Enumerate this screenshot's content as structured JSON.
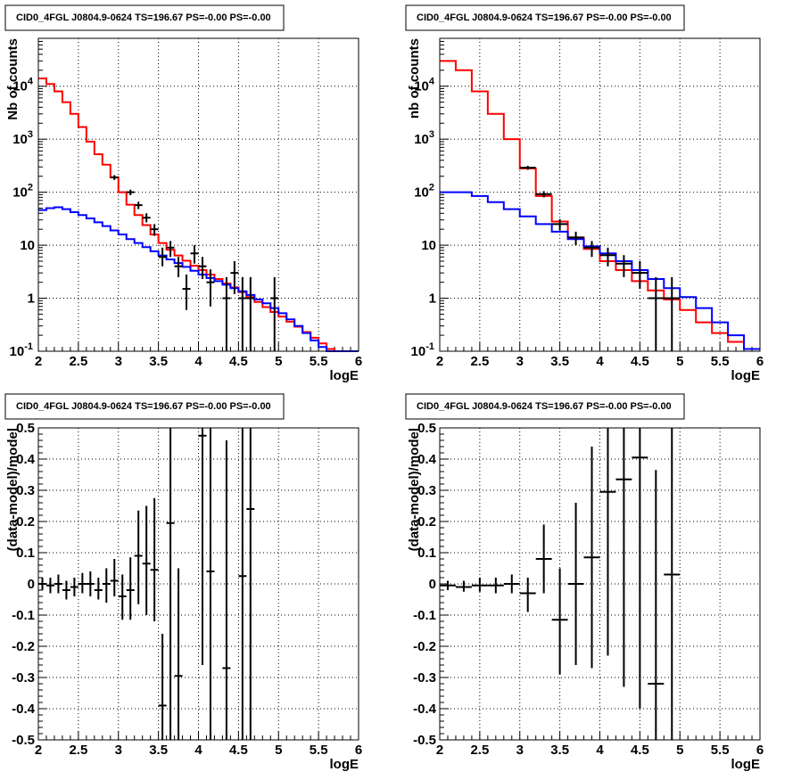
{
  "chart_data": [
    {
      "type": "line",
      "title": "CID0_4FGL J0804.9-0624 TS=196.67 PS=-0.00 PS=-0.00",
      "xlabel": "logE",
      "ylabel": "Nb of counts",
      "xlim": [
        2,
        6
      ],
      "ylim": [
        0.1,
        80000
      ],
      "yscale": "log",
      "grid": true,
      "x_ticks": [
        "2",
        "2.5",
        "3",
        "3.5",
        "4",
        "4.5",
        "5",
        "5.5",
        "6"
      ],
      "y_ticks": [
        {
          "v": 0.1,
          "base": "10",
          "exp": "-1"
        },
        {
          "v": 1,
          "t": "1"
        },
        {
          "v": 10,
          "t": "10"
        },
        {
          "v": 100,
          "base": "10",
          "exp": "2"
        },
        {
          "v": 1000,
          "base": "10",
          "exp": "3"
        },
        {
          "v": 10000,
          "base": "10",
          "exp": "4"
        }
      ],
      "series": [
        {
          "color": "#ff0000",
          "type": "step",
          "bin_width": 0.1,
          "x": [
            2.0,
            2.1,
            2.2,
            2.3,
            2.4,
            2.5,
            2.6,
            2.7,
            2.8,
            2.9,
            3.0,
            3.1,
            3.2,
            3.3,
            3.4,
            3.5,
            3.6,
            3.7,
            3.8,
            3.9,
            4.0,
            4.1,
            4.2,
            4.3,
            4.4,
            4.5,
            4.6,
            4.7,
            4.8,
            4.9,
            5.0,
            5.1,
            5.2,
            5.3,
            5.4,
            5.5,
            5.6,
            5.7,
            5.8,
            5.9
          ],
          "y": [
            14000,
            11000,
            8000,
            5000,
            3000,
            1700,
            900,
            520,
            330,
            190,
            100,
            58,
            37,
            24,
            16,
            11,
            8.2,
            6.4,
            5.1,
            4.1,
            3.4,
            2.8,
            2.3,
            1.9,
            1.6,
            1.3,
            1.05,
            0.85,
            0.68,
            0.55,
            0.45,
            0.36,
            0.29,
            0.23,
            0.18,
            0.14,
            0.11,
            0.1,
            0.1,
            0.1
          ]
        },
        {
          "color": "#0000ff",
          "type": "step",
          "bin_width": 0.1,
          "x": [
            2.0,
            2.1,
            2.2,
            2.3,
            2.4,
            2.5,
            2.6,
            2.7,
            2.8,
            2.9,
            3.0,
            3.1,
            3.2,
            3.3,
            3.4,
            3.5,
            3.6,
            3.7,
            3.8,
            3.9,
            4.0,
            4.1,
            4.2,
            4.3,
            4.4,
            4.5,
            4.6,
            4.7,
            4.8,
            4.9,
            5.0,
            5.1,
            5.2,
            5.3,
            5.4,
            5.5,
            5.6,
            5.7,
            5.8,
            5.9
          ],
          "y": [
            46,
            50,
            52,
            48,
            42,
            37,
            32,
            27,
            23,
            19,
            16,
            13,
            11,
            9.2,
            7.7,
            6.4,
            5.4,
            4.6,
            3.9,
            3.3,
            2.8,
            2.4,
            2.1,
            1.8,
            1.55,
            1.35,
            1.15,
            0.95,
            0.8,
            0.65,
            0.52,
            0.4,
            0.3,
            0.22,
            0.16,
            0.12,
            0.1,
            0.1,
            0.1,
            0.1
          ]
        }
      ],
      "data_points": {
        "color": "#000000",
        "xerr": 0.05,
        "points": [
          {
            "x": 2.95,
            "y": 190,
            "lo": 170,
            "hi": 210
          },
          {
            "x": 3.15,
            "y": 100,
            "lo": 88,
            "hi": 112
          },
          {
            "x": 3.25,
            "y": 57,
            "lo": 48,
            "hi": 66
          },
          {
            "x": 3.35,
            "y": 33,
            "lo": 27,
            "hi": 40
          },
          {
            "x": 3.45,
            "y": 20,
            "lo": 15,
            "hi": 25
          },
          {
            "x": 3.55,
            "y": 6,
            "lo": 4,
            "hi": 9
          },
          {
            "x": 3.65,
            "y": 9,
            "lo": 6,
            "hi": 12
          },
          {
            "x": 3.75,
            "y": 4,
            "lo": 2.5,
            "hi": 6
          },
          {
            "x": 3.85,
            "y": 1.5,
            "lo": 0.6,
            "hi": 2.8
          },
          {
            "x": 3.95,
            "y": 7,
            "lo": 4.5,
            "hi": 10
          },
          {
            "x": 4.05,
            "y": 4,
            "lo": 2.3,
            "hi": 6
          },
          {
            "x": 4.15,
            "y": 2,
            "lo": 0.7,
            "hi": 3.5
          },
          {
            "x": 4.35,
            "y": 1,
            "lo": 0.1,
            "hi": 2.5
          },
          {
            "x": 4.45,
            "y": 3,
            "lo": 1.2,
            "hi": 5
          },
          {
            "x": 4.55,
            "y": 1,
            "lo": 0.1,
            "hi": 2.5
          },
          {
            "x": 4.65,
            "y": 1,
            "lo": 0.1,
            "hi": 2.5
          },
          {
            "x": 4.95,
            "y": 1,
            "lo": 0.1,
            "hi": 2.5
          }
        ]
      }
    },
    {
      "type": "line",
      "title": "CID0_4FGL J0804.9-0624 TS=196.67 PS=-0.00 PS=-0.00",
      "xlabel": "logE",
      "ylabel": "nb of counts",
      "xlim": [
        2,
        6
      ],
      "ylim": [
        0.1,
        80000
      ],
      "yscale": "log",
      "grid": true,
      "x_ticks": [
        "2",
        "2.5",
        "3",
        "3.5",
        "4",
        "4.5",
        "5",
        "5.5",
        "6"
      ],
      "y_ticks": [
        {
          "v": 0.1,
          "base": "10",
          "exp": "-1"
        },
        {
          "v": 1,
          "t": "1"
        },
        {
          "v": 10,
          "t": "10"
        },
        {
          "v": 100,
          "base": "10",
          "exp": "2"
        },
        {
          "v": 1000,
          "base": "10",
          "exp": "3"
        },
        {
          "v": 10000,
          "base": "10",
          "exp": "4"
        }
      ],
      "series": [
        {
          "color": "#ff0000",
          "type": "step",
          "bin_width": 0.2,
          "x": [
            2.0,
            2.2,
            2.4,
            2.6,
            2.8,
            3.0,
            3.2,
            3.4,
            3.6,
            3.8,
            4.0,
            4.2,
            4.4,
            4.6,
            4.8,
            5.0,
            5.2,
            5.4,
            5.6,
            5.8
          ],
          "y": [
            30000,
            20000,
            8000,
            3000,
            1000,
            280,
            85,
            28,
            14,
            8.5,
            5,
            3.4,
            2.1,
            1.4,
            0.95,
            0.6,
            0.35,
            0.22,
            0.15,
            0.11
          ]
        },
        {
          "color": "#0000ff",
          "type": "step",
          "bin_width": 0.2,
          "x": [
            2.0,
            2.2,
            2.4,
            2.6,
            2.8,
            3.0,
            3.2,
            3.4,
            3.6,
            3.8,
            4.0,
            4.2,
            4.4,
            4.6,
            4.8,
            5.0,
            5.2,
            5.4,
            5.6,
            5.8
          ],
          "y": [
            100,
            100,
            85,
            65,
            48,
            35,
            25,
            18,
            13,
            9.5,
            7,
            5,
            3.4,
            2.3,
            1.55,
            1.05,
            0.65,
            0.35,
            0.2,
            0.11
          ]
        }
      ],
      "data_points": {
        "color": "#000000",
        "xerr": 0.1,
        "points": [
          {
            "x": 3.1,
            "y": 290,
            "lo": 265,
            "hi": 315
          },
          {
            "x": 3.3,
            "y": 92,
            "lo": 80,
            "hi": 105
          },
          {
            "x": 3.5,
            "y": 25,
            "lo": 19,
            "hi": 31
          },
          {
            "x": 3.7,
            "y": 14,
            "lo": 10,
            "hi": 18
          },
          {
            "x": 3.9,
            "y": 9,
            "lo": 6,
            "hi": 12
          },
          {
            "x": 4.1,
            "y": 6.5,
            "lo": 4,
            "hi": 9
          },
          {
            "x": 4.3,
            "y": 4.5,
            "lo": 2.5,
            "hi": 6.5
          },
          {
            "x": 4.5,
            "y": 3,
            "lo": 1.5,
            "hi": 5
          },
          {
            "x": 4.7,
            "y": 1,
            "lo": 0.1,
            "hi": 2.5
          },
          {
            "x": 4.9,
            "y": 1,
            "lo": 0.1,
            "hi": 2.5
          }
        ]
      }
    },
    {
      "type": "scatter",
      "title": "CID0_4FGL J0804.9-0624 TS=196.67 PS=-0.00 PS=-0.00",
      "xlabel": "logE",
      "ylabel": "(data-model)/model",
      "xlim": [
        2,
        6
      ],
      "ylim": [
        -0.5,
        0.5
      ],
      "yscale": "linear",
      "grid": true,
      "x_ticks": [
        "2",
        "2.5",
        "3",
        "3.5",
        "4",
        "4.5",
        "5",
        "5.5",
        "6"
      ],
      "y_ticks": [
        {
          "v": -0.5,
          "t": "-0.5"
        },
        {
          "v": -0.4,
          "t": "-0.4"
        },
        {
          "v": -0.3,
          "t": "-0.3"
        },
        {
          "v": -0.2,
          "t": "-0.2"
        },
        {
          "v": -0.1,
          "t": "-0.1"
        },
        {
          "v": 0,
          "t": "0"
        },
        {
          "v": 0.1,
          "t": "0.1"
        },
        {
          "v": 0.2,
          "t": "0.2"
        },
        {
          "v": 0.3,
          "t": "0.3"
        },
        {
          "v": 0.4,
          "t": "0.4"
        },
        {
          "v": 0.5,
          "t": "0.5"
        }
      ],
      "series": [],
      "data_points": {
        "color": "#000000",
        "xerr": 0.05,
        "points": [
          {
            "x": 2.05,
            "y": 0.0,
            "lo": -0.02,
            "hi": 0.02
          },
          {
            "x": 2.15,
            "y": -0.005,
            "lo": -0.03,
            "hi": 0.02
          },
          {
            "x": 2.25,
            "y": 0.0,
            "lo": -0.03,
            "hi": 0.03
          },
          {
            "x": 2.35,
            "y": -0.02,
            "lo": -0.05,
            "hi": 0.01
          },
          {
            "x": 2.45,
            "y": -0.01,
            "lo": -0.04,
            "hi": 0.02
          },
          {
            "x": 2.55,
            "y": 0.0,
            "lo": -0.03,
            "hi": 0.035
          },
          {
            "x": 2.65,
            "y": 0.0,
            "lo": -0.04,
            "hi": 0.04
          },
          {
            "x": 2.75,
            "y": -0.02,
            "lo": -0.05,
            "hi": 0.02
          },
          {
            "x": 2.85,
            "y": 0.0,
            "lo": -0.06,
            "hi": 0.05
          },
          {
            "x": 2.95,
            "y": 0.01,
            "lo": -0.04,
            "hi": 0.08
          },
          {
            "x": 3.05,
            "y": -0.04,
            "lo": -0.115,
            "hi": 0.03
          },
          {
            "x": 3.15,
            "y": -0.02,
            "lo": -0.115,
            "hi": 0.085
          },
          {
            "x": 3.25,
            "y": 0.09,
            "lo": -0.065,
            "hi": 0.235
          },
          {
            "x": 3.35,
            "y": 0.065,
            "lo": -0.1,
            "hi": 0.25
          },
          {
            "x": 3.45,
            "y": 0.045,
            "lo": -0.12,
            "hi": 0.275
          },
          {
            "x": 3.55,
            "y": -0.39,
            "lo": -0.5,
            "hi": -0.16
          },
          {
            "x": 3.65,
            "y": 0.195,
            "lo": -0.5,
            "hi": 0.5
          },
          {
            "x": 3.75,
            "y": -0.295,
            "lo": -0.5,
            "hi": 0.05
          },
          {
            "x": 4.05,
            "y": 0.475,
            "lo": -0.26,
            "hi": 0.5
          },
          {
            "x": 4.15,
            "y": 0.04,
            "lo": -0.5,
            "hi": 0.5
          },
          {
            "x": 4.35,
            "y": -0.27,
            "lo": -0.5,
            "hi": 0.46
          },
          {
            "x": 4.55,
            "y": 0.025,
            "lo": -0.5,
            "hi": 0.5
          },
          {
            "x": 4.65,
            "y": 0.24,
            "lo": -0.5,
            "hi": 0.5
          }
        ]
      }
    },
    {
      "type": "scatter",
      "title": "CID0_4FGL J0804.9-0624 TS=196.67 PS=-0.00 PS=-0.00",
      "xlabel": "logE",
      "ylabel": "(data-model)/model",
      "xlim": [
        2,
        6
      ],
      "ylim": [
        -0.5,
        0.5
      ],
      "yscale": "linear",
      "grid": true,
      "x_ticks": [
        "2",
        "2.5",
        "3",
        "3.5",
        "4",
        "4.5",
        "5",
        "5.5",
        "6"
      ],
      "y_ticks": [
        {
          "v": -0.5,
          "t": "-0.5"
        },
        {
          "v": -0.4,
          "t": "-0.4"
        },
        {
          "v": -0.3,
          "t": "-0.3"
        },
        {
          "v": -0.2,
          "t": "-0.2"
        },
        {
          "v": -0.1,
          "t": "-0.1"
        },
        {
          "v": 0,
          "t": "0"
        },
        {
          "v": 0.1,
          "t": "0.1"
        },
        {
          "v": 0.2,
          "t": "0.2"
        },
        {
          "v": 0.3,
          "t": "0.3"
        },
        {
          "v": 0.4,
          "t": "0.4"
        },
        {
          "v": 0.5,
          "t": "0.5"
        }
      ],
      "series": [],
      "data_points": {
        "color": "#000000",
        "xerr": 0.1,
        "points": [
          {
            "x": 2.1,
            "y": -0.005,
            "lo": -0.02,
            "hi": 0.01
          },
          {
            "x": 2.3,
            "y": -0.01,
            "lo": -0.025,
            "hi": 0.01
          },
          {
            "x": 2.5,
            "y": -0.005,
            "lo": -0.025,
            "hi": 0.02
          },
          {
            "x": 2.7,
            "y": -0.005,
            "lo": -0.03,
            "hi": 0.02
          },
          {
            "x": 2.9,
            "y": 0.0,
            "lo": -0.03,
            "hi": 0.03
          },
          {
            "x": 3.1,
            "y": -0.03,
            "lo": -0.09,
            "hi": 0.02
          },
          {
            "x": 3.3,
            "y": 0.08,
            "lo": -0.03,
            "hi": 0.19
          },
          {
            "x": 3.5,
            "y": -0.115,
            "lo": -0.29,
            "hi": 0.05
          },
          {
            "x": 3.7,
            "y": 0.0,
            "lo": -0.26,
            "hi": 0.26
          },
          {
            "x": 3.9,
            "y": 0.085,
            "lo": -0.27,
            "hi": 0.44
          },
          {
            "x": 4.1,
            "y": 0.295,
            "lo": -0.23,
            "hi": 0.5
          },
          {
            "x": 4.3,
            "y": 0.335,
            "lo": -0.33,
            "hi": 0.5
          },
          {
            "x": 4.5,
            "y": 0.405,
            "lo": -0.4,
            "hi": 0.5
          },
          {
            "x": 4.7,
            "y": -0.32,
            "lo": -0.5,
            "hi": 0.365
          },
          {
            "x": 4.9,
            "y": 0.03,
            "lo": -0.5,
            "hi": 0.5
          }
        ]
      }
    }
  ]
}
